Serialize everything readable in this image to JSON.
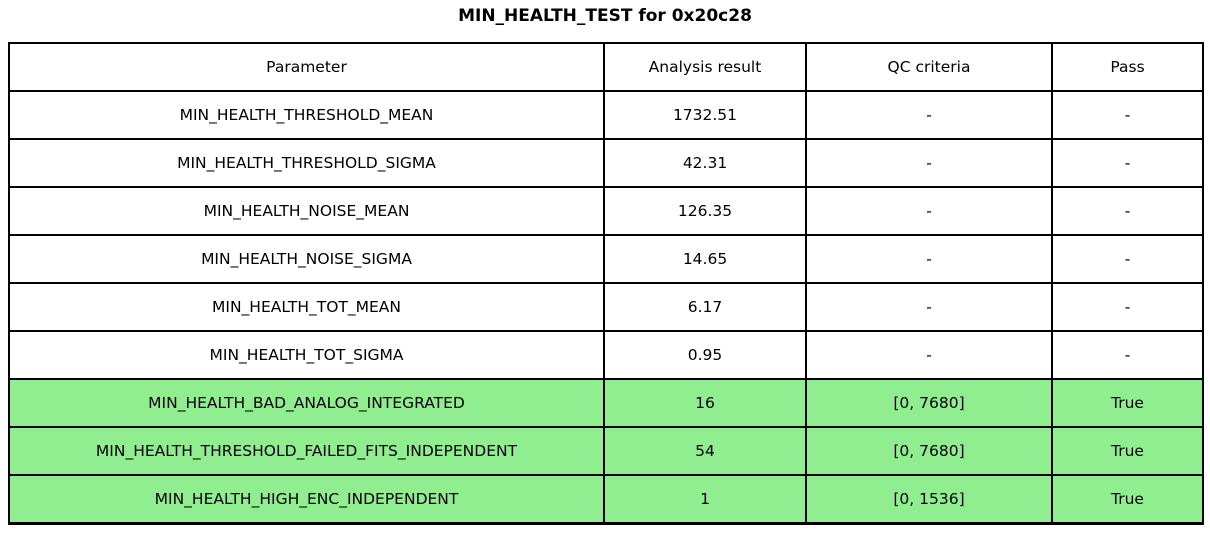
{
  "title": "MIN_HEALTH_TEST for 0x20c28",
  "colors": {
    "pass_row_bg": "#90EE90",
    "default_row_bg": "#FFFFFF",
    "border": "#000000",
    "text": "#000000"
  },
  "table": {
    "headers": [
      "Parameter",
      "Analysis result",
      "QC criteria",
      "Pass"
    ],
    "rows": [
      {
        "highlight": false,
        "cells": [
          "MIN_HEALTH_THRESHOLD_MEAN",
          "1732.51",
          "-",
          "-"
        ]
      },
      {
        "highlight": false,
        "cells": [
          "MIN_HEALTH_THRESHOLD_SIGMA",
          "42.31",
          "-",
          "-"
        ]
      },
      {
        "highlight": false,
        "cells": [
          "MIN_HEALTH_NOISE_MEAN",
          "126.35",
          "-",
          "-"
        ]
      },
      {
        "highlight": false,
        "cells": [
          "MIN_HEALTH_NOISE_SIGMA",
          "14.65",
          "-",
          "-"
        ]
      },
      {
        "highlight": false,
        "cells": [
          "MIN_HEALTH_TOT_MEAN",
          "6.17",
          "-",
          "-"
        ]
      },
      {
        "highlight": false,
        "cells": [
          "MIN_HEALTH_TOT_SIGMA",
          "0.95",
          "-",
          "-"
        ]
      },
      {
        "highlight": true,
        "cells": [
          "MIN_HEALTH_BAD_ANALOG_INTEGRATED",
          "16",
          "[0, 7680]",
          "True"
        ]
      },
      {
        "highlight": true,
        "cells": [
          "MIN_HEALTH_THRESHOLD_FAILED_FITS_INDEPENDENT",
          "54",
          "[0, 7680]",
          "True"
        ]
      },
      {
        "highlight": true,
        "cells": [
          "MIN_HEALTH_HIGH_ENC_INDEPENDENT",
          "1",
          "[0, 1536]",
          "True"
        ]
      }
    ]
  },
  "chart_data": {
    "type": "table",
    "title": "MIN_HEALTH_TEST for 0x20c28",
    "columns": [
      "Parameter",
      "Analysis result",
      "QC criteria",
      "Pass"
    ],
    "rows": [
      [
        "MIN_HEALTH_THRESHOLD_MEAN",
        "1732.51",
        "-",
        "-"
      ],
      [
        "MIN_HEALTH_THRESHOLD_SIGMA",
        "42.31",
        "-",
        "-"
      ],
      [
        "MIN_HEALTH_NOISE_MEAN",
        "126.35",
        "-",
        "-"
      ],
      [
        "MIN_HEALTH_NOISE_SIGMA",
        "14.65",
        "-",
        "-"
      ],
      [
        "MIN_HEALTH_TOT_MEAN",
        "6.17",
        "-",
        "-"
      ],
      [
        "MIN_HEALTH_TOT_SIGMA",
        "0.95",
        "-",
        "-"
      ],
      [
        "MIN_HEALTH_BAD_ANALOG_INTEGRATED",
        "16",
        "[0, 7680]",
        "True"
      ],
      [
        "MIN_HEALTH_THRESHOLD_FAILED_FITS_INDEPENDENT",
        "54",
        "[0, 7680]",
        "True"
      ],
      [
        "MIN_HEALTH_HIGH_ENC_INDEPENDENT",
        "1",
        "[0, 1536]",
        "True"
      ]
    ],
    "highlighted_rows": [
      6,
      7,
      8
    ],
    "highlight_color": "#90EE90",
    "legend_position": "none",
    "grid": true
  }
}
